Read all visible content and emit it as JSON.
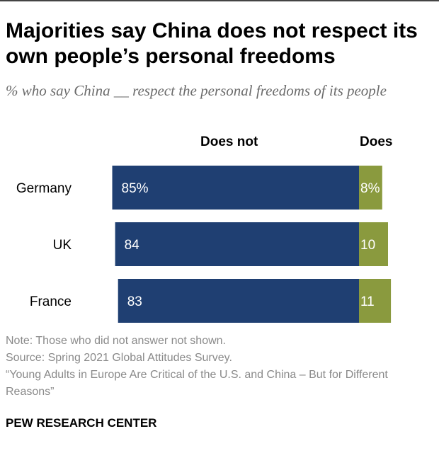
{
  "title": "Majorities say China does not respect its own people’s personal freedoms",
  "subtitle": "% who say China __ respect the personal freedoms of its people",
  "chart_data": {
    "type": "bar",
    "orientation": "horizontal",
    "stacked": true,
    "categories": [
      "Germany",
      "UK",
      "France"
    ],
    "series": [
      {
        "name": "Does not",
        "values": [
          85,
          84,
          83
        ],
        "labels": [
          "85%",
          "84",
          "83"
        ],
        "color": "#1f3f72"
      },
      {
        "name": "Does",
        "values": [
          8,
          10,
          11
        ],
        "labels": [
          "8%",
          "10",
          "11"
        ],
        "color": "#8a9a3e"
      }
    ],
    "xlim": [
      0,
      100
    ],
    "grid": false,
    "legend": "column headers above bars"
  },
  "notes": [
    "Note: Those who did not answer not shown.",
    "Source: Spring 2021 Global Attitudes Survey.",
    "“Young Adults in Europe Are Critical of the U.S. and China – But for Different Reasons”"
  ],
  "footer": "PEW RESEARCH CENTER"
}
